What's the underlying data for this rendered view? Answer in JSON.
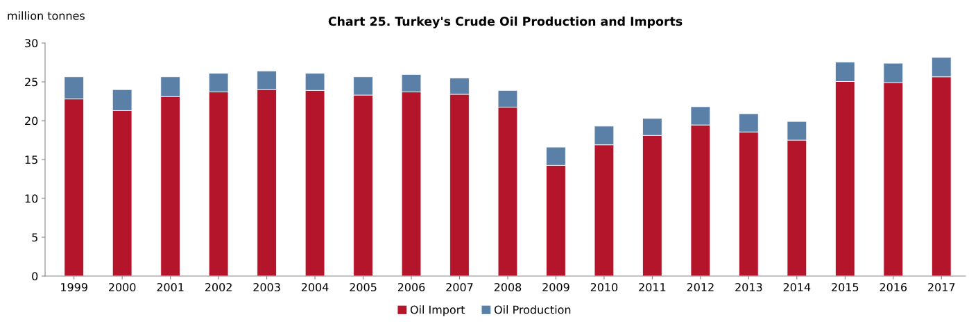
{
  "chart_data": {
    "type": "bar",
    "stacked": true,
    "title": "Chart 25. Turkey's Crude Oil Production and Imports",
    "ylabel": "million tonnes",
    "categories": [
      "1999",
      "2000",
      "2001",
      "2002",
      "2003",
      "2004",
      "2005",
      "2006",
      "2007",
      "2008",
      "2009",
      "2010",
      "2011",
      "2012",
      "2013",
      "2014",
      "2015",
      "2016",
      "2017"
    ],
    "series": [
      {
        "name": "Oil Import",
        "color": "#b5152b",
        "values": [
          22.8,
          21.3,
          23.1,
          23.7,
          24.0,
          23.9,
          23.3,
          23.7,
          23.4,
          21.75,
          14.25,
          16.9,
          18.1,
          19.45,
          18.55,
          17.5,
          25.05,
          24.9,
          25.65
        ]
      },
      {
        "name": "Oil Production",
        "color": "#5b80a8",
        "values": [
          2.85,
          2.7,
          2.55,
          2.4,
          2.4,
          2.2,
          2.35,
          2.25,
          2.1,
          2.15,
          2.35,
          2.4,
          2.2,
          2.35,
          2.35,
          2.4,
          2.5,
          2.5,
          2.5
        ]
      }
    ],
    "ylim": [
      0,
      30
    ],
    "yticks": [
      0,
      5,
      10,
      15,
      20,
      25,
      30
    ],
    "grid": false,
    "legend": "bottom"
  }
}
